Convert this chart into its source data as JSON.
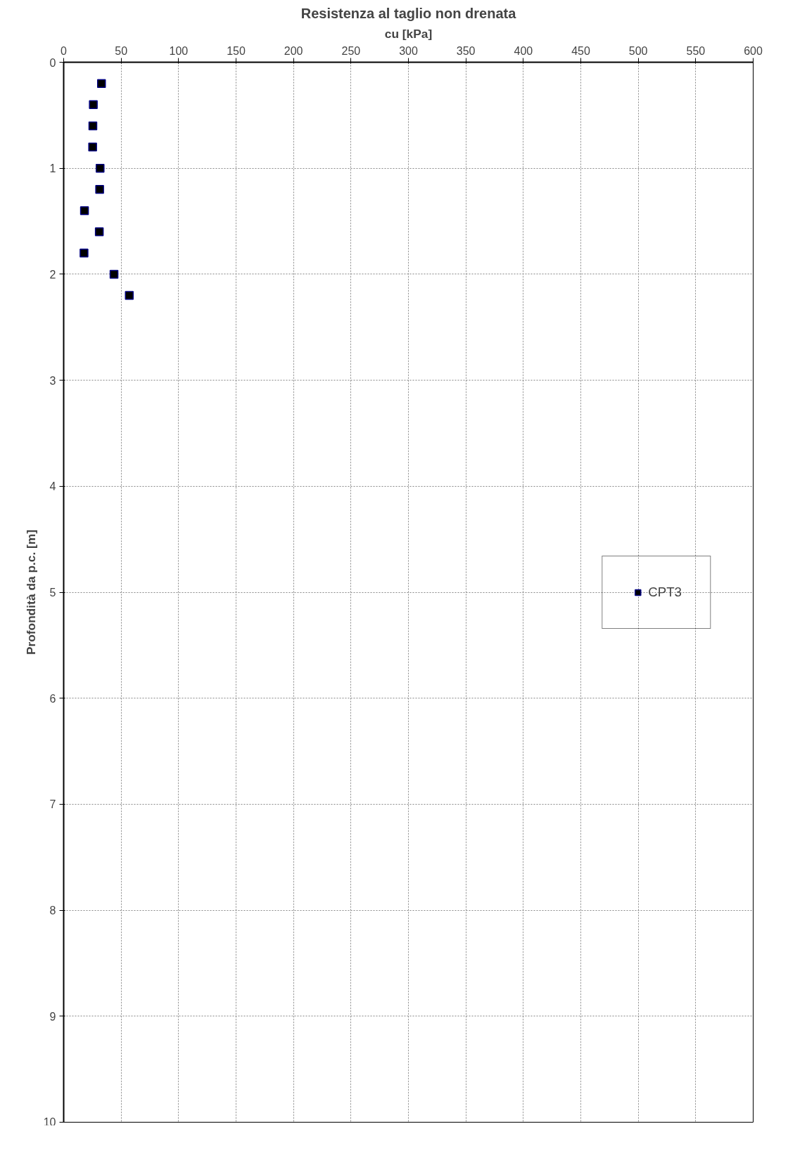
{
  "chart_data": {
    "type": "scatter",
    "title": "Resistenza al taglio non drenata",
    "xlabel": "cu [kPa]",
    "ylabel": "Profondità da p.c. [m]",
    "xlim": [
      0,
      600
    ],
    "xticks": [
      0,
      50,
      100,
      150,
      200,
      250,
      300,
      350,
      400,
      450,
      500,
      550,
      600
    ],
    "ylim": [
      10,
      0
    ],
    "yticks": [
      0,
      1,
      2,
      3,
      4,
      5,
      6,
      7,
      8,
      9,
      10
    ],
    "grid": true,
    "legend": "right",
    "marker": "square",
    "series": [
      {
        "name": "CPT3",
        "color": "#000000",
        "x": [
          32.9,
          25.8,
          25.4,
          25.2,
          31.7,
          31.3,
          18.1,
          31.0,
          17.7,
          43.8,
          57.1
        ],
        "values": [
          0.2,
          0.4,
          0.6,
          0.8,
          1.0,
          1.2,
          1.4,
          1.6,
          1.8,
          2.0,
          2.2
        ]
      }
    ]
  }
}
